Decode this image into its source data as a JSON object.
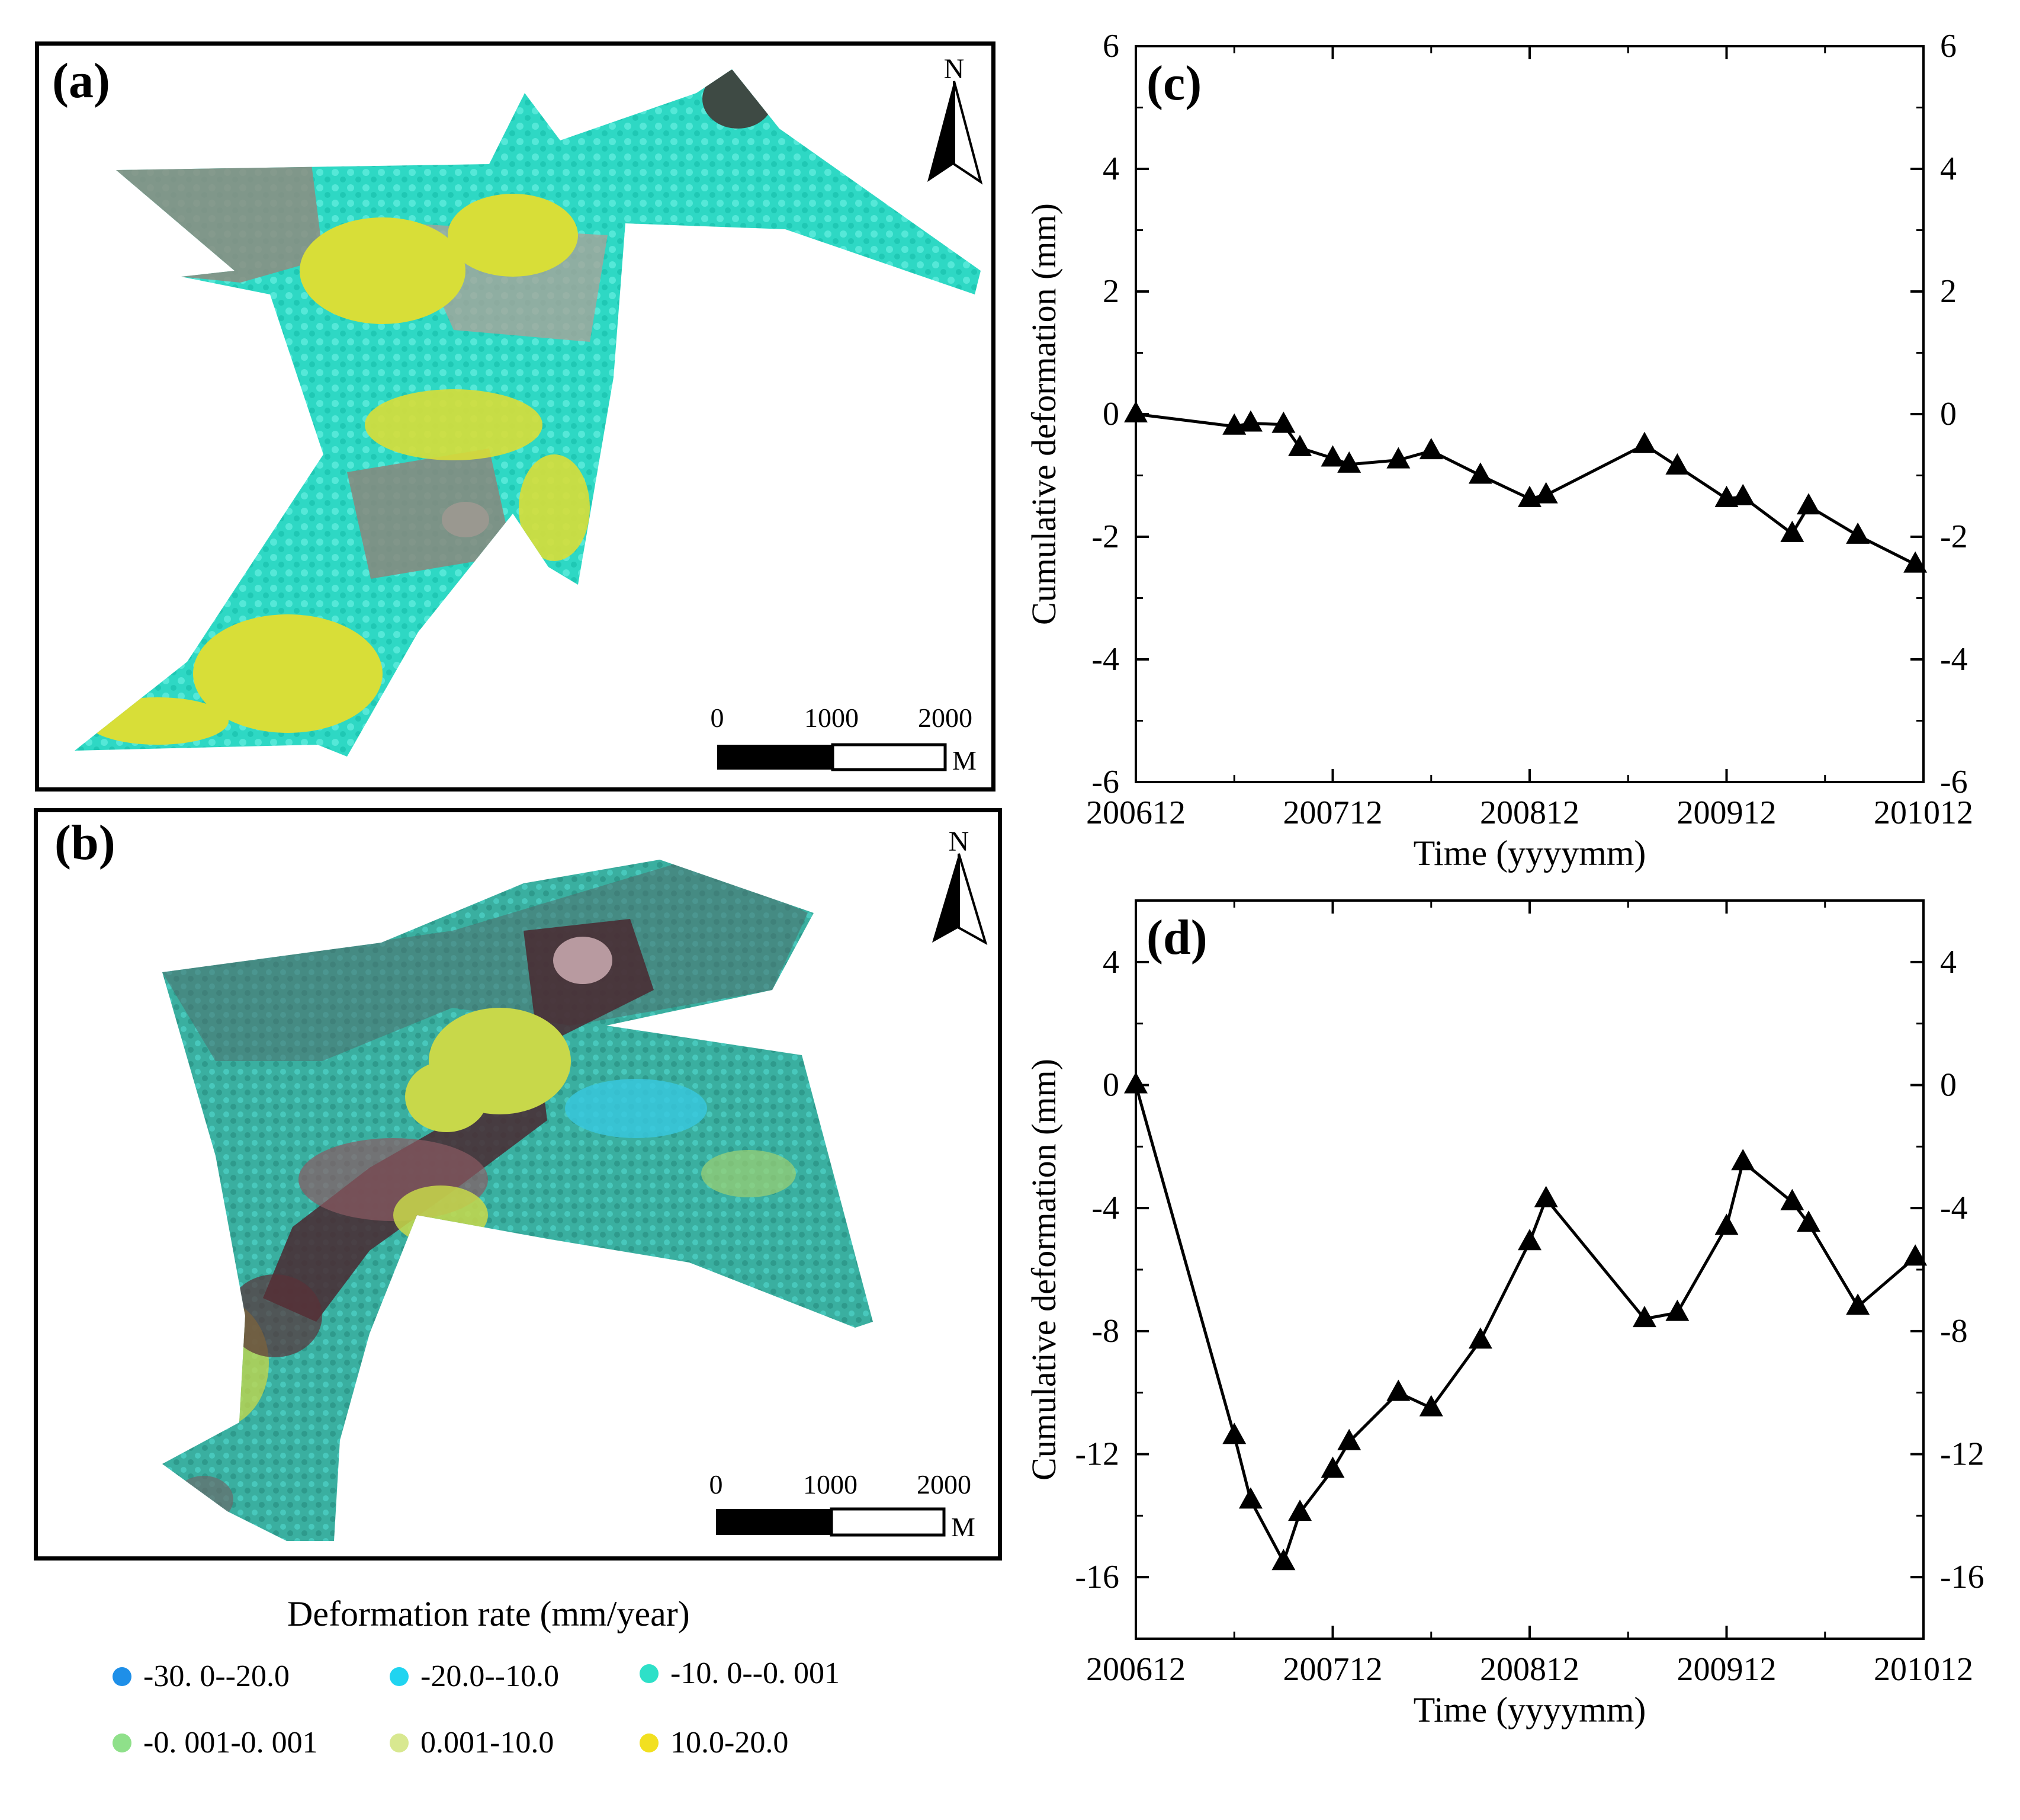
{
  "panels": {
    "a": {
      "label": "(a)",
      "north": "N",
      "scale": {
        "t0": "0",
        "t1": "1000",
        "t2": "2000",
        "unit": "M"
      }
    },
    "b": {
      "label": "(b)",
      "north": "N",
      "scale": {
        "t0": "0",
        "t1": "1000",
        "t2": "2000",
        "unit": "M"
      }
    }
  },
  "legend": {
    "title": "Deformation rate (mm/year)",
    "items": [
      {
        "label": "-30. 0--20.0",
        "color": "#1E8FE8"
      },
      {
        "label": "-20.0--10.0",
        "color": "#20D4F0"
      },
      {
        "label": "-10. 0--0. 001",
        "color": "#2EE0C8"
      },
      {
        "label": "-0. 001-0. 001",
        "color": "#8FE08A"
      },
      {
        "label": "0.001-10.0",
        "color": "#D8E890"
      },
      {
        "label": "10.0-20.0",
        "color": "#F2E020"
      }
    ]
  },
  "chart_data": [
    {
      "type": "line",
      "panel_label": "(c)",
      "xlabel": "Time (yyyymm)",
      "ylabel": "Cumulative deformation (mm)",
      "x_ticks": [
        "200612",
        "200712",
        "200812",
        "200912",
        "201012"
      ],
      "x_range_months": [
        0,
        48
      ],
      "ylim": [
        -6,
        6
      ],
      "y_ticks": [
        6,
        4,
        2,
        0,
        -2,
        -4,
        -6
      ],
      "y_tick_labels": [
        "6",
        "4",
        "2",
        "0",
        "-2",
        "-4",
        "-6"
      ],
      "marker": "triangle",
      "series": [
        {
          "name": "cumulative deformation",
          "x_months": [
            0,
            6,
            7,
            9,
            10,
            12,
            13,
            16,
            18,
            21,
            24,
            25,
            31,
            33,
            36,
            37,
            40,
            41,
            44,
            47.5
          ],
          "values": [
            0.0,
            -0.2,
            -0.15,
            -0.17,
            -0.55,
            -0.72,
            -0.82,
            -0.75,
            -0.6,
            -1.0,
            -1.38,
            -1.32,
            -0.5,
            -0.85,
            -1.38,
            -1.35,
            -1.95,
            -1.5,
            -1.98,
            -2.45
          ]
        }
      ]
    },
    {
      "type": "line",
      "panel_label": "(d)",
      "xlabel": "Time (yyyymm)",
      "ylabel": "Cumulative deformation (mm)",
      "x_ticks": [
        "200612",
        "200712",
        "200812",
        "200912",
        "201012"
      ],
      "x_range_months": [
        0,
        48
      ],
      "ylim": [
        -18,
        6
      ],
      "y_ticks": [
        4,
        0,
        -4,
        -8,
        -12,
        -16
      ],
      "y_tick_labels": [
        "4",
        "0",
        "-4",
        "-8",
        "-12",
        "-16"
      ],
      "marker": "triangle",
      "series": [
        {
          "name": "cumulative deformation",
          "x_months": [
            0,
            6,
            7,
            9,
            10,
            12,
            13,
            16,
            18,
            21,
            24,
            25,
            31,
            33,
            36,
            37,
            40,
            41,
            44,
            47.5
          ],
          "values": [
            0.0,
            -11.4,
            -13.5,
            -15.5,
            -13.9,
            -12.5,
            -11.6,
            -10.0,
            -10.5,
            -8.3,
            -5.1,
            -3.7,
            -7.6,
            -7.4,
            -4.6,
            -2.5,
            -3.8,
            -4.5,
            -7.2,
            -5.6
          ]
        }
      ]
    }
  ]
}
